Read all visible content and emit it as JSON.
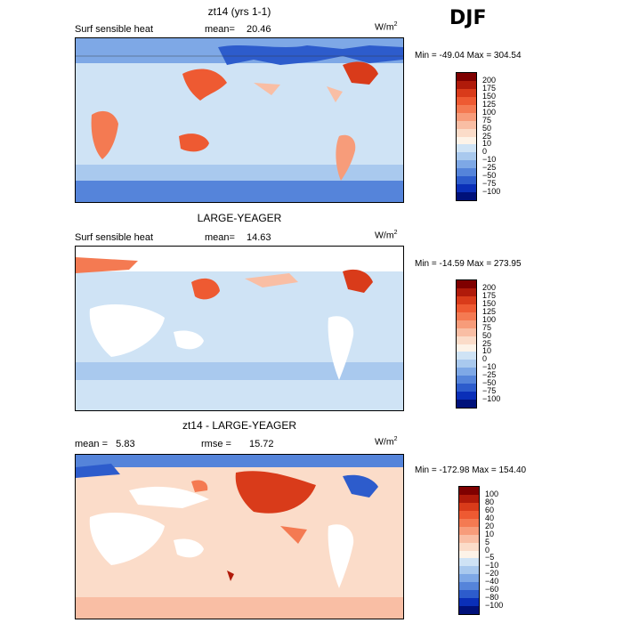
{
  "season": "DJF",
  "panels": [
    {
      "title": "zt14 (yrs 1-1)",
      "left_label": "Surf sensible heat",
      "stat_label": "mean=",
      "stat_value": "20.46",
      "units_base": "W/m",
      "units_exp": "2",
      "min_text": "Min = -49.04 Max = 304.54",
      "colorbar": {
        "labels": [
          "200",
          "175",
          "150",
          "125",
          "100",
          "75",
          "50",
          "25",
          "10",
          "0",
          "−10",
          "−25",
          "−50",
          "−75",
          "−100"
        ],
        "colors": [
          "#7f0000",
          "#b01a0a",
          "#d93b1a",
          "#ee5a32",
          "#f47a52",
          "#f79c7a",
          "#f9bea4",
          "#fbdcc9",
          "#fdf3e8",
          "#cfe3f5",
          "#a9c9ee",
          "#7ea8e6",
          "#5584da",
          "#2d5ccc",
          "#0a2fb8",
          "#00117a"
        ]
      }
    },
    {
      "title": "LARGE-YEAGER",
      "left_label": "Surf sensible heat",
      "stat_label": "mean=",
      "stat_value": "14.63",
      "units_base": "W/m",
      "units_exp": "2",
      "min_text": "Min = -14.59 Max = 273.95",
      "colorbar": {
        "labels": [
          "200",
          "175",
          "150",
          "125",
          "100",
          "75",
          "50",
          "25",
          "10",
          "0",
          "−10",
          "−25",
          "−50",
          "−75",
          "−100"
        ],
        "colors": [
          "#7f0000",
          "#b01a0a",
          "#d93b1a",
          "#ee5a32",
          "#f47a52",
          "#f79c7a",
          "#f9bea4",
          "#fbdcc9",
          "#fdf3e8",
          "#cfe3f5",
          "#a9c9ee",
          "#7ea8e6",
          "#5584da",
          "#2d5ccc",
          "#0a2fb8",
          "#00117a"
        ]
      }
    },
    {
      "title": "zt14 - LARGE-YEAGER",
      "left_label": "mean =   5.83",
      "stat_label": "rmse =",
      "stat_value": "15.72",
      "units_base": "W/m",
      "units_exp": "2",
      "min_text": "Min = -172.98 Max = 154.40",
      "colorbar": {
        "labels": [
          "100",
          "80",
          "60",
          "40",
          "20",
          "10",
          "5",
          "0",
          "−5",
          "−10",
          "−20",
          "−40",
          "−60",
          "−80",
          "−100"
        ],
        "colors": [
          "#7f0000",
          "#b01a0a",
          "#d93b1a",
          "#ee5a32",
          "#f47a52",
          "#f79c7a",
          "#f9bea4",
          "#fbdcc9",
          "#fdf3e8",
          "#cfe3f5",
          "#a9c9ee",
          "#7ea8e6",
          "#5584da",
          "#2d5ccc",
          "#0a2fb8",
          "#00117a"
        ]
      }
    }
  ]
}
